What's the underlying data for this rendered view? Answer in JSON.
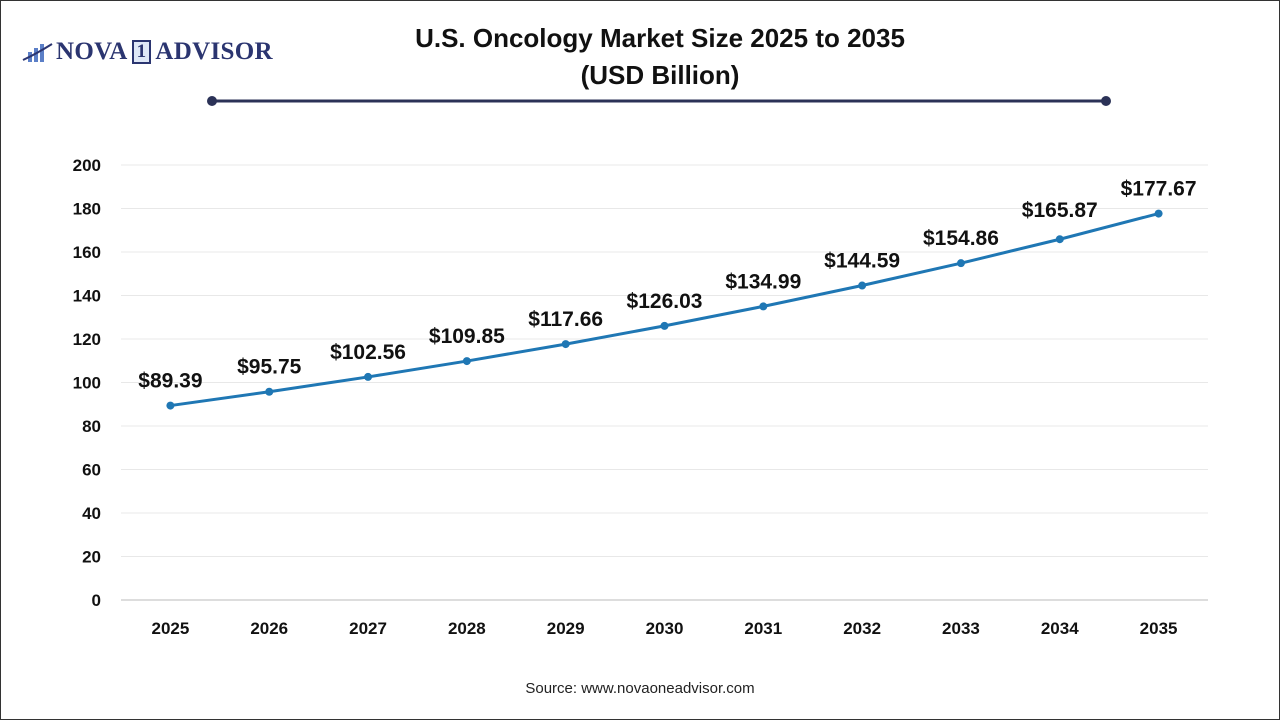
{
  "logo": {
    "text_left": "NOVA",
    "text_mid": "1",
    "text_right": "ADVISOR"
  },
  "title_line1": "U.S. Oncology Market Size 2025 to 2035",
  "title_line2": "(USD Billion)",
  "source": "Source: www.novaoneadvisor.com",
  "colors": {
    "line": "#1f77b4",
    "title_rule": "#2b3257",
    "gridline": "#e8e8e8"
  },
  "chart_data": {
    "type": "line",
    "title": "U.S. Oncology Market Size 2025 to 2035 (USD Billion)",
    "categories": [
      "2025",
      "2026",
      "2027",
      "2028",
      "2029",
      "2030",
      "2031",
      "2032",
      "2033",
      "2034",
      "2035"
    ],
    "values": [
      89.39,
      95.75,
      102.56,
      109.85,
      117.66,
      126.03,
      134.99,
      144.59,
      154.86,
      165.87,
      177.67
    ],
    "data_labels": [
      "$89.39",
      "$95.75",
      "$102.56",
      "$109.85",
      "$117.66",
      "$126.03",
      "$134.99",
      "$144.59",
      "$154.86",
      "$165.87",
      "$177.67"
    ],
    "yticks": [
      0,
      20,
      40,
      60,
      80,
      100,
      120,
      140,
      160,
      180,
      200
    ],
    "ylim": [
      0,
      200
    ],
    "grid": true,
    "legend": "none"
  }
}
